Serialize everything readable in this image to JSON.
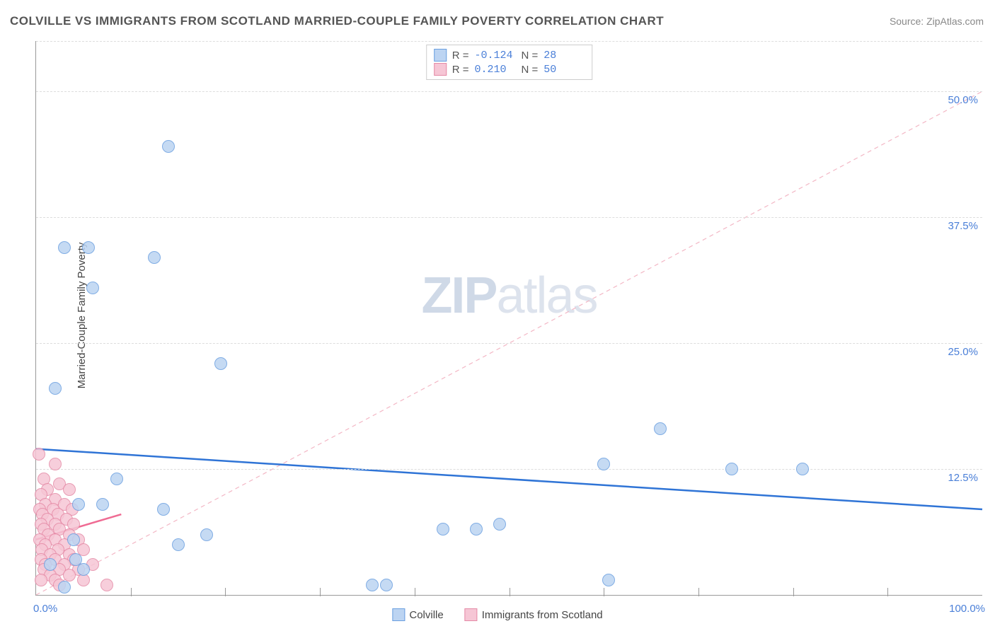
{
  "title": "COLVILLE VS IMMIGRANTS FROM SCOTLAND MARRIED-COUPLE FAMILY POVERTY CORRELATION CHART",
  "source": "Source: ZipAtlas.com",
  "ylabel": "Married-Couple Family Poverty",
  "watermark_bold": "ZIP",
  "watermark_light": "atlas",
  "chart": {
    "type": "scatter",
    "xlim": [
      0,
      100
    ],
    "ylim": [
      0,
      55
    ],
    "x_axis_labels": [
      {
        "v": 0,
        "t": "0.0%"
      },
      {
        "v": 100,
        "t": "100.0%"
      }
    ],
    "y_axis_labels": [
      {
        "v": 12.5,
        "t": "12.5%"
      },
      {
        "v": 25.0,
        "t": "25.0%"
      },
      {
        "v": 37.5,
        "t": "37.5%"
      },
      {
        "v": 50.0,
        "t": "50.0%"
      }
    ],
    "y_gridlines": [
      12.5,
      25.0,
      37.5,
      50.0,
      55.0
    ],
    "x_ticks_major": [
      10,
      20,
      30,
      40,
      50,
      60,
      70,
      80,
      90
    ],
    "background_color": "#ffffff",
    "grid_color": "#dddddd",
    "axis_text_color": "#4a7fd8",
    "marker_radius": 9,
    "marker_border_width": 1.2,
    "series": [
      {
        "name": "Colville",
        "fill": "#bcd4f2",
        "stroke": "#6a9fe0",
        "r_label": "R =",
        "r_value": "-0.124",
        "n_label": "N =",
        "n_value": "28",
        "trend": {
          "x1": 0,
          "y1": 14.5,
          "x2": 100,
          "y2": 8.5,
          "color": "#2f74d6",
          "width": 2.5,
          "dash": "none"
        },
        "ref_line": {
          "x1": 0,
          "y1": 0,
          "x2": 100,
          "y2": 50,
          "color": "#f3b7c5",
          "width": 1.2,
          "dash": "6,5"
        },
        "points": [
          [
            14,
            44.5
          ],
          [
            3.0,
            34.5
          ],
          [
            5.5,
            34.5
          ],
          [
            12.5,
            33.5
          ],
          [
            6.0,
            30.5
          ],
          [
            19.5,
            23.0
          ],
          [
            2.0,
            20.5
          ],
          [
            66.0,
            16.5
          ],
          [
            60.0,
            13.0
          ],
          [
            73.5,
            12.5
          ],
          [
            81.0,
            12.5
          ],
          [
            8.5,
            11.5
          ],
          [
            4.5,
            9.0
          ],
          [
            7.0,
            9.0
          ],
          [
            13.5,
            8.5
          ],
          [
            18.0,
            6.0
          ],
          [
            4.0,
            5.5
          ],
          [
            15.0,
            5.0
          ],
          [
            43.0,
            6.5
          ],
          [
            46.5,
            6.5
          ],
          [
            35.5,
            1.0
          ],
          [
            37.0,
            1.0
          ],
          [
            60.5,
            1.5
          ],
          [
            1.5,
            3.0
          ],
          [
            3.0,
            0.8
          ],
          [
            4.2,
            3.5
          ],
          [
            5.0,
            2.5
          ],
          [
            49.0,
            7.0
          ]
        ]
      },
      {
        "name": "Immigrants from Scotland",
        "fill": "#f6c6d5",
        "stroke": "#e58aa6",
        "r_label": "R =",
        "r_value": "0.210",
        "n_label": "N =",
        "n_value": "50",
        "trend": {
          "x1": 0,
          "y1": 5.5,
          "x2": 9,
          "y2": 8.0,
          "color": "#ef6b93",
          "width": 2.5,
          "dash": "none"
        },
        "points": [
          [
            0.3,
            14.0
          ],
          [
            2.0,
            13.0
          ],
          [
            0.8,
            11.5
          ],
          [
            2.5,
            11.0
          ],
          [
            1.2,
            10.5
          ],
          [
            3.5,
            10.5
          ],
          [
            0.5,
            10.0
          ],
          [
            2.0,
            9.5
          ],
          [
            1.0,
            9.0
          ],
          [
            3.0,
            9.0
          ],
          [
            0.4,
            8.5
          ],
          [
            1.8,
            8.5
          ],
          [
            3.8,
            8.5
          ],
          [
            0.7,
            8.0
          ],
          [
            2.3,
            8.0
          ],
          [
            1.2,
            7.5
          ],
          [
            3.2,
            7.5
          ],
          [
            0.5,
            7.0
          ],
          [
            2.0,
            7.0
          ],
          [
            4.0,
            7.0
          ],
          [
            0.8,
            6.5
          ],
          [
            2.5,
            6.5
          ],
          [
            1.3,
            6.0
          ],
          [
            3.5,
            6.0
          ],
          [
            0.4,
            5.5
          ],
          [
            2.0,
            5.5
          ],
          [
            4.5,
            5.5
          ],
          [
            1.0,
            5.0
          ],
          [
            3.0,
            5.0
          ],
          [
            0.6,
            4.5
          ],
          [
            2.3,
            4.5
          ],
          [
            5.0,
            4.5
          ],
          [
            1.5,
            4.0
          ],
          [
            3.5,
            4.0
          ],
          [
            0.5,
            3.5
          ],
          [
            2.0,
            3.5
          ],
          [
            4.0,
            3.5
          ],
          [
            1.0,
            3.0
          ],
          [
            3.0,
            3.0
          ],
          [
            6.0,
            3.0
          ],
          [
            0.8,
            2.5
          ],
          [
            2.5,
            2.5
          ],
          [
            4.5,
            2.5
          ],
          [
            1.5,
            2.0
          ],
          [
            3.5,
            2.0
          ],
          [
            0.5,
            1.5
          ],
          [
            2.0,
            1.5
          ],
          [
            5.0,
            1.5
          ],
          [
            7.5,
            1.0
          ],
          [
            2.5,
            1.0
          ]
        ]
      }
    ],
    "legend_bottom": [
      {
        "swatch_fill": "#bcd4f2",
        "swatch_stroke": "#6a9fe0",
        "label": "Colville"
      },
      {
        "swatch_fill": "#f6c6d5",
        "swatch_stroke": "#e58aa6",
        "label": "Immigrants from Scotland"
      }
    ]
  }
}
